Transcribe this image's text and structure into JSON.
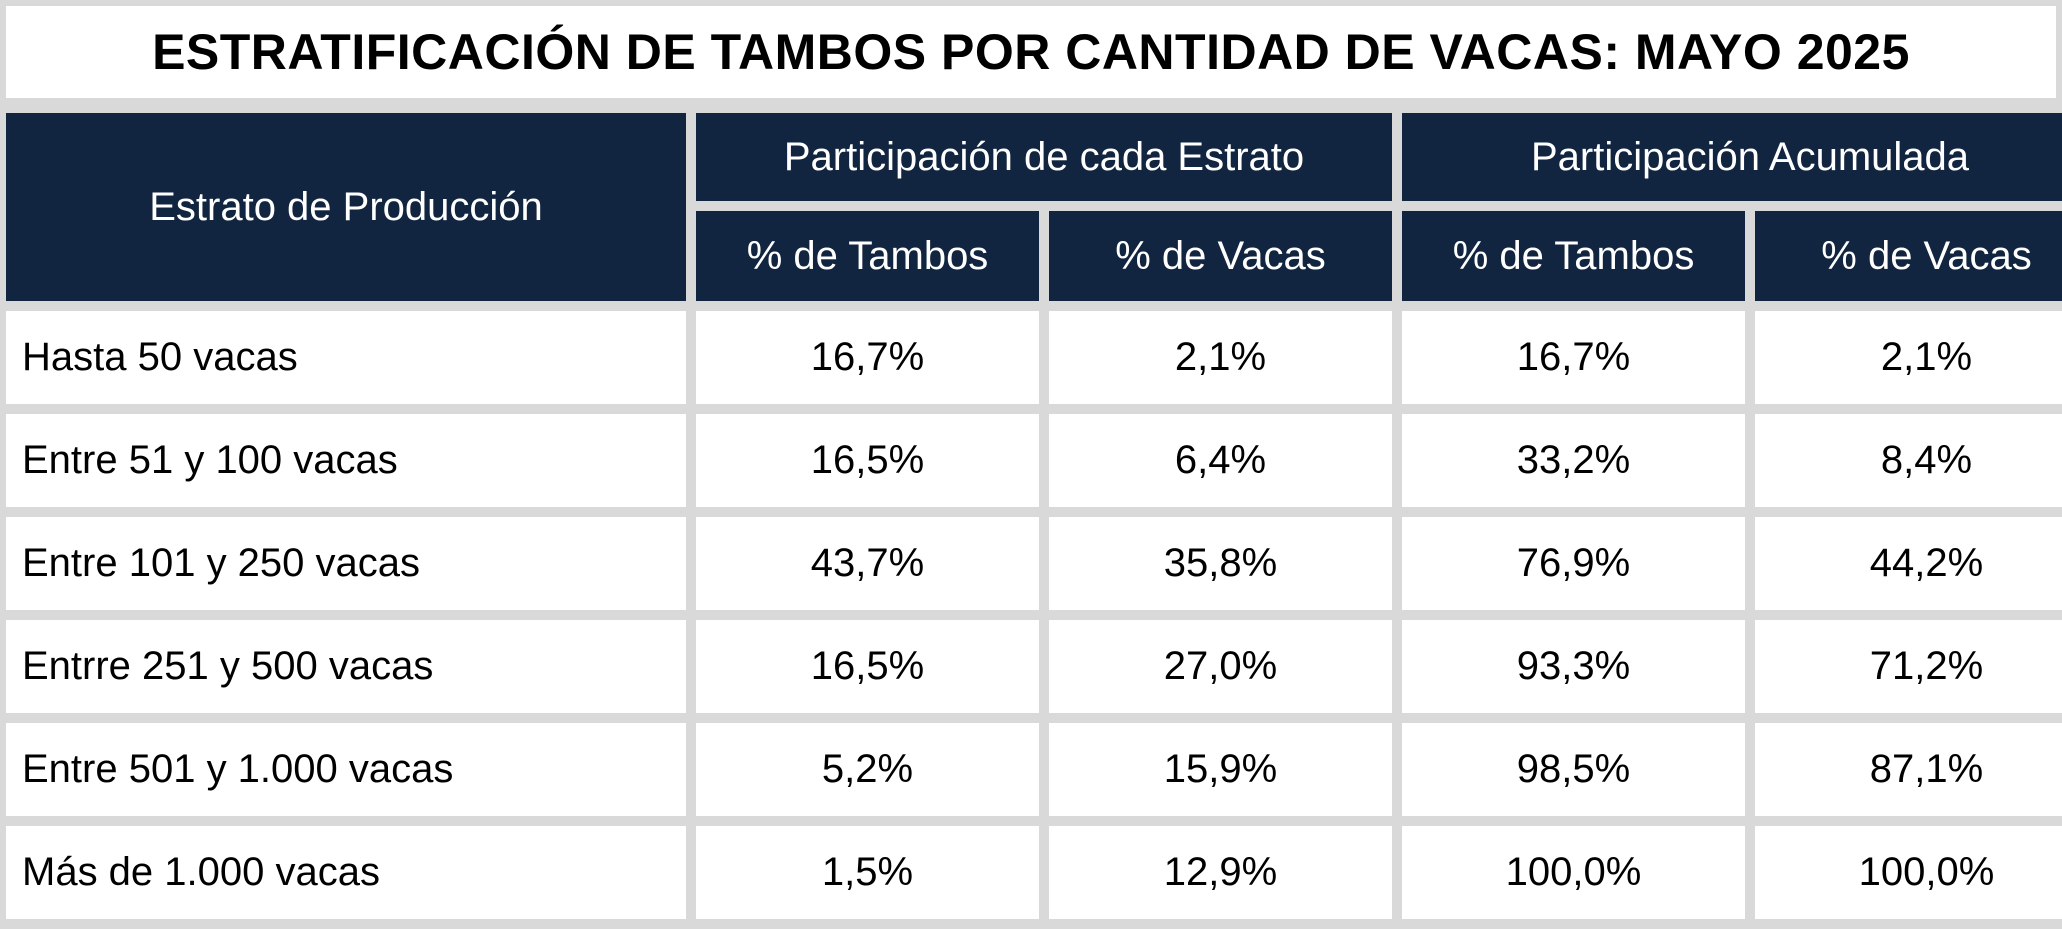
{
  "title": "ESTRATIFICACIÓN DE TAMBOS POR CANTIDAD DE VACAS: MAYO 2025",
  "header": {
    "stratum": "Estrato de Producción",
    "group_each": "Participación de cada Estrato",
    "group_cumulative": "Participación Acumulada",
    "col_tambos": "% de Tambos",
    "col_vacas": "% de Vacas"
  },
  "rows": [
    {
      "label": "Hasta 50 vacas",
      "each_tambos": "16,7%",
      "each_vacas": "2,1%",
      "cum_tambos": "16,7%",
      "cum_vacas": "2,1%"
    },
    {
      "label": "Entre 51 y 100 vacas",
      "each_tambos": "16,5%",
      "each_vacas": "6,4%",
      "cum_tambos": "33,2%",
      "cum_vacas": "8,4%"
    },
    {
      "label": "Entre 101 y 250 vacas",
      "each_tambos": "43,7%",
      "each_vacas": "35,8%",
      "cum_tambos": "76,9%",
      "cum_vacas": "44,2%"
    },
    {
      "label": "Entrre 251 y 500 vacas",
      "each_tambos": "16,5%",
      "each_vacas": "27,0%",
      "cum_tambos": "93,3%",
      "cum_vacas": "71,2%"
    },
    {
      "label": "Entre 501 y 1.000 vacas",
      "each_tambos": "5,2%",
      "each_vacas": "15,9%",
      "cum_tambos": "98,5%",
      "cum_vacas": "87,1%"
    },
    {
      "label": "Más de 1.000 vacas",
      "each_tambos": "1,5%",
      "each_vacas": "12,9%",
      "cum_tambos": "100,0%",
      "cum_vacas": "100,0%"
    }
  ],
  "colors": {
    "header_bg": "#122540",
    "grid": "#d9d9d9",
    "cell_bg": "#ffffff"
  }
}
